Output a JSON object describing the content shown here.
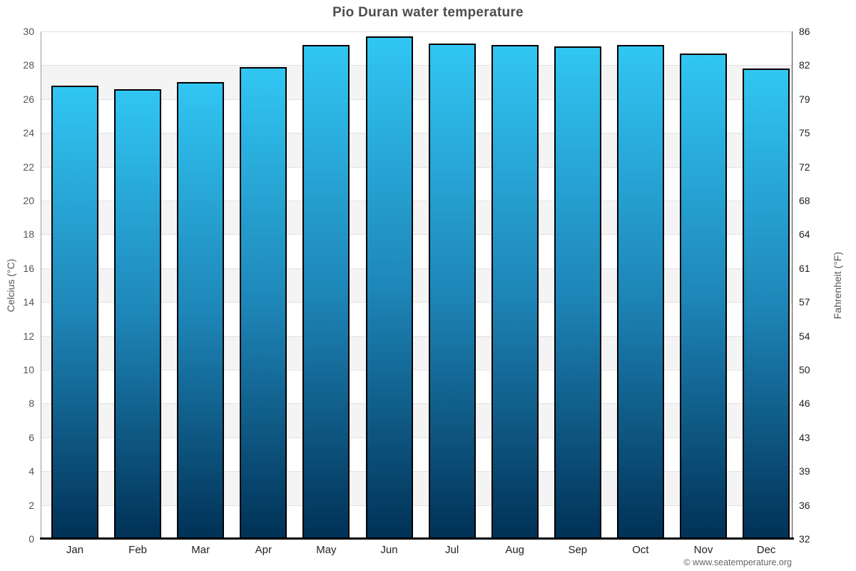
{
  "chart_data": {
    "type": "bar",
    "title": "Pio Duran water temperature",
    "categories": [
      "Jan",
      "Feb",
      "Mar",
      "Apr",
      "May",
      "Jun",
      "Jul",
      "Aug",
      "Sep",
      "Oct",
      "Nov",
      "Dec"
    ],
    "values": [
      26.8,
      26.6,
      27.0,
      27.9,
      29.2,
      29.7,
      29.3,
      29.2,
      29.1,
      29.2,
      28.7,
      27.8
    ],
    "value_unit": "°C",
    "ylabel_left": "Celcius (°C)",
    "ylabel_right": "Fahrenheit (°F)",
    "ylim": [
      0,
      30
    ],
    "yticks_celsius": [
      30,
      28,
      26,
      24,
      22,
      20,
      18,
      16,
      14,
      12,
      10,
      8,
      6,
      4,
      2,
      0
    ],
    "yticks_fahrenheit": [
      86,
      82,
      79,
      75,
      72,
      68,
      64,
      61,
      57,
      54,
      50,
      46,
      43,
      39,
      36,
      32
    ],
    "grid": "horizontal gridlines every 2°C with alternating white/gray bands",
    "legend": "none",
    "colors": {
      "bar_gradient_top": "#31c6f3",
      "bar_gradient_mid": "#1e86b8",
      "bar_gradient_bottom": "#013156",
      "bar_border": "#000000",
      "band_gray": "#f4f4f4",
      "band_white": "#ffffff",
      "gridline": "#e2e2e2",
      "title_text": "#4d4d4d",
      "tick_text": "#555555"
    }
  },
  "footer": {
    "copyright": "© www.seatemperature.org"
  }
}
